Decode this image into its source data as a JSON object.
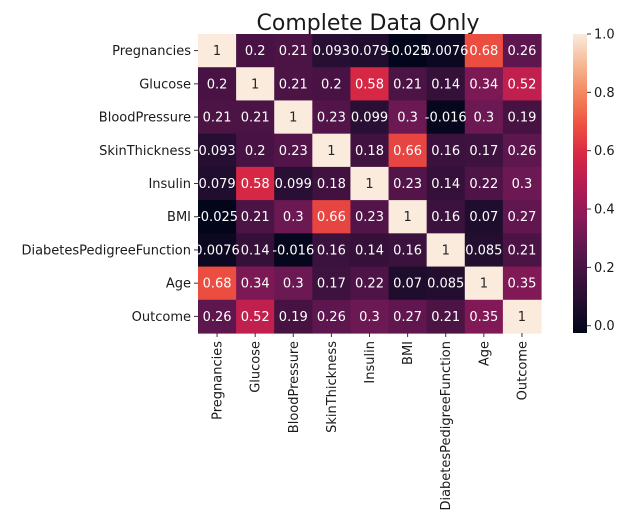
{
  "chart_data": {
    "type": "heatmap",
    "title": "Complete Data Only",
    "xlabel": "",
    "ylabel": "",
    "rows": [
      "Pregnancies",
      "Glucose",
      "BloodPressure",
      "SkinThickness",
      "Insulin",
      "BMI",
      "DiabetesPedigreeFunction",
      "Age",
      "Outcome"
    ],
    "columns": [
      "Pregnancies",
      "Glucose",
      "BloodPressure",
      "SkinThickness",
      "Insulin",
      "BMI",
      "DiabetesPedigreeFunction",
      "Age",
      "Outcome"
    ],
    "values": [
      [
        1,
        0.2,
        0.21,
        0.093,
        0.079,
        -0.025,
        0.0076,
        0.68,
        0.26
      ],
      [
        0.2,
        1,
        0.21,
        0.2,
        0.58,
        0.21,
        0.14,
        0.34,
        0.52
      ],
      [
        0.21,
        0.21,
        1,
        0.23,
        0.099,
        0.3,
        -0.016,
        0.3,
        0.19
      ],
      [
        0.093,
        0.2,
        0.23,
        1,
        0.18,
        0.66,
        0.16,
        0.17,
        0.26
      ],
      [
        0.079,
        0.58,
        0.099,
        0.18,
        1,
        0.23,
        0.14,
        0.22,
        0.3
      ],
      [
        -0.025,
        0.21,
        0.3,
        0.66,
        0.23,
        1,
        0.16,
        0.07,
        0.27
      ],
      [
        0.0076,
        0.14,
        -0.016,
        0.16,
        0.14,
        0.16,
        1,
        0.085,
        0.21
      ],
      [
        0.68,
        0.34,
        0.3,
        0.17,
        0.22,
        0.07,
        0.085,
        1,
        0.35
      ],
      [
        0.26,
        0.52,
        0.19,
        0.26,
        0.3,
        0.27,
        0.21,
        0.35,
        1
      ]
    ],
    "value_labels": [
      [
        "1",
        "0.2",
        "0.21",
        "0.093",
        "0.079",
        "-0.025",
        "0.0076",
        "0.68",
        "0.26"
      ],
      [
        "0.2",
        "1",
        "0.21",
        "0.2",
        "0.58",
        "0.21",
        "0.14",
        "0.34",
        "0.52"
      ],
      [
        "0.21",
        "0.21",
        "1",
        "0.23",
        "0.099",
        "0.3",
        "-0.016",
        "0.3",
        "0.19"
      ],
      [
        "0.093",
        "0.2",
        "0.23",
        "1",
        "0.18",
        "0.66",
        "0.16",
        "0.17",
        "0.26"
      ],
      [
        "0.079",
        "0.58",
        "0.099",
        "0.18",
        "1",
        "0.23",
        "0.14",
        "0.22",
        "0.3"
      ],
      [
        "-0.025",
        "0.21",
        "0.3",
        "0.66",
        "0.23",
        "1",
        "0.16",
        "0.07",
        "0.27"
      ],
      [
        "0.0076",
        "0.14",
        "-0.016",
        "0.16",
        "0.14",
        "0.16",
        "1",
        "0.085",
        "0.21"
      ],
      [
        "0.68",
        "0.34",
        "0.3",
        "0.17",
        "0.22",
        "0.07",
        "0.085",
        "1",
        "0.35"
      ],
      [
        "0.26",
        "0.52",
        "0.19",
        "0.26",
        "0.3",
        "0.27",
        "0.21",
        "0.35",
        "1"
      ]
    ],
    "colorbar": {
      "colormap": "rocket",
      "range": [
        -0.025,
        1.0
      ],
      "ticks": [
        0.0,
        0.2,
        0.4,
        0.6,
        0.8,
        1.0
      ],
      "tick_labels": [
        "0.0",
        "0.2",
        "0.4",
        "0.6",
        "0.8",
        "1.0"
      ]
    },
    "grid": false,
    "legend": "colorbar-right"
  }
}
